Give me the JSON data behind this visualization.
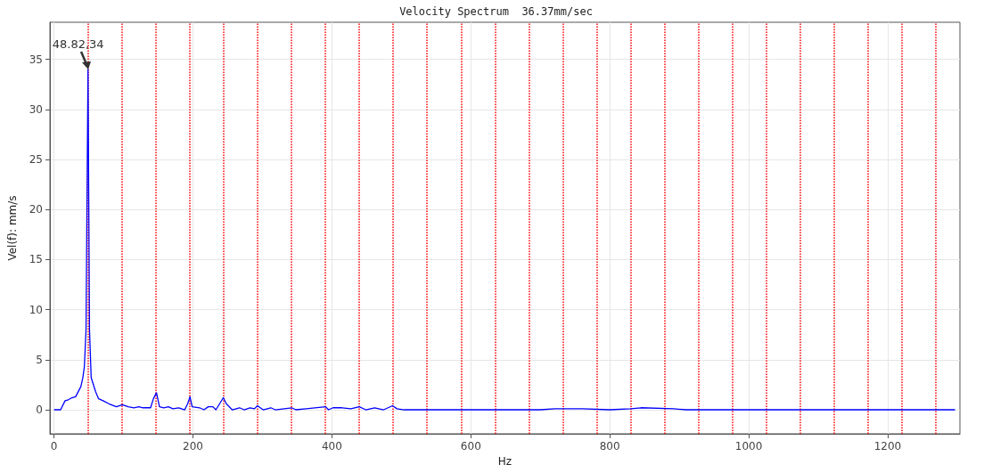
{
  "chart_data": {
    "type": "line",
    "title": "Velocity Spectrum  36.37mm/sec",
    "xlabel": "Hz",
    "ylabel": "Vel(f): mm/s",
    "annotations": [
      {
        "text": "48.82,34",
        "x": 48.82,
        "y": 34
      }
    ],
    "x": [
      0,
      9.4,
      15.8,
      20.5,
      25.6,
      31,
      34,
      38.5,
      41.4,
      43.6,
      46,
      48.82,
      51,
      53.4,
      59.8,
      64.1,
      70.5,
      79,
      89.7,
      98.3,
      106.8,
      115,
      121.8,
      128,
      138.9,
      143,
      147.4,
      151.7,
      158,
      164.5,
      171,
      179.5,
      188,
      192.3,
      195.7,
      198.7,
      209.4,
      215.8,
      222,
      228.6,
      233,
      243.6,
      247.9,
      256.4,
      267,
      273.5,
      282,
      288.5,
      292.7,
      301,
      312,
      318.4,
      342,
      348,
      363,
      391,
      395,
      401.7,
      414.5,
      427.4,
      439.3,
      448.7,
      461.5,
      474.4,
      487.2,
      493.6,
      504,
      600,
      700,
      721,
      760,
      800,
      830,
      845,
      892,
      910,
      1000,
      1100,
      1200,
      1297
    ],
    "values": [
      0,
      0,
      0.9,
      1.0,
      1.2,
      1.3,
      1.7,
      2.3,
      3.2,
      4.3,
      8,
      34,
      8,
      3.2,
      1.8,
      1.1,
      0.9,
      0.6,
      0.3,
      0.5,
      0.3,
      0.2,
      0.3,
      0.2,
      0.2,
      1.1,
      1.7,
      0.3,
      0.2,
      0.3,
      0.1,
      0.2,
      0,
      0.6,
      1.3,
      0.3,
      0.2,
      0,
      0.3,
      0.3,
      0,
      1.2,
      0.6,
      0,
      0.2,
      0,
      0.2,
      0.1,
      0.4,
      0,
      0.2,
      0,
      0.2,
      0,
      0.1,
      0.3,
      0,
      0.2,
      0.2,
      0.1,
      0.3,
      0,
      0.2,
      0,
      0.4,
      0.1,
      0,
      0,
      0,
      0.1,
      0.1,
      0,
      0.1,
      0.2,
      0.1,
      0,
      0,
      0,
      0,
      0
    ],
    "color": "#0000ff",
    "xlim": [
      -6,
      1304
    ],
    "xticks": [
      0,
      200,
      400,
      600,
      800,
      1000,
      1200
    ],
    "ylim": [
      -2.4,
      38.7
    ],
    "yticks": [
      0,
      5,
      10,
      15,
      20,
      25,
      30,
      35
    ],
    "grid": true,
    "marker": "none",
    "line_style": "solid",
    "ref_lines": [
      {
        "axis": "x",
        "value": 48.82,
        "color": "#ff0000",
        "line_style": "dotted"
      },
      {
        "axis": "x",
        "value": 97.64,
        "color": "#ff0000",
        "line_style": "dotted"
      },
      {
        "axis": "x",
        "value": 146.46,
        "color": "#ff0000",
        "line_style": "dotted"
      },
      {
        "axis": "x",
        "value": 195.28,
        "color": "#ff0000",
        "line_style": "dotted"
      },
      {
        "axis": "x",
        "value": 244.1,
        "color": "#ff0000",
        "line_style": "dotted"
      },
      {
        "axis": "x",
        "value": 292.92,
        "color": "#ff0000",
        "line_style": "dotted"
      },
      {
        "axis": "x",
        "value": 341.74,
        "color": "#ff0000",
        "line_style": "dotted"
      },
      {
        "axis": "x",
        "value": 390.56,
        "color": "#ff0000",
        "line_style": "dotted"
      },
      {
        "axis": "x",
        "value": 439.38,
        "color": "#ff0000",
        "line_style": "dotted"
      },
      {
        "axis": "x",
        "value": 488.2,
        "color": "#ff0000",
        "line_style": "dotted"
      },
      {
        "axis": "x",
        "value": 537.02,
        "color": "#ff0000",
        "line_style": "dotted"
      },
      {
        "axis": "x",
        "value": 585.84,
        "color": "#ff0000",
        "line_style": "dotted"
      },
      {
        "axis": "x",
        "value": 634.66,
        "color": "#ff0000",
        "line_style": "dotted"
      },
      {
        "axis": "x",
        "value": 683.48,
        "color": "#ff0000",
        "line_style": "dotted"
      },
      {
        "axis": "x",
        "value": 732.3,
        "color": "#ff0000",
        "line_style": "dotted"
      },
      {
        "axis": "x",
        "value": 781.12,
        "color": "#ff0000",
        "line_style": "dotted"
      },
      {
        "axis": "x",
        "value": 829.94,
        "color": "#ff0000",
        "line_style": "dotted"
      },
      {
        "axis": "x",
        "value": 878.76,
        "color": "#ff0000",
        "line_style": "dotted"
      },
      {
        "axis": "x",
        "value": 927.58,
        "color": "#ff0000",
        "line_style": "dotted"
      },
      {
        "axis": "x",
        "value": 976.4,
        "color": "#ff0000",
        "line_style": "dotted"
      },
      {
        "axis": "x",
        "value": 1025.22,
        "color": "#ff0000",
        "line_style": "dotted"
      },
      {
        "axis": "x",
        "value": 1074.04,
        "color": "#ff0000",
        "line_style": "dotted"
      },
      {
        "axis": "x",
        "value": 1122.86,
        "color": "#ff0000",
        "line_style": "dotted"
      },
      {
        "axis": "x",
        "value": 1171.68,
        "color": "#ff0000",
        "line_style": "dotted"
      },
      {
        "axis": "x",
        "value": 1220.5,
        "color": "#ff0000",
        "line_style": "dotted"
      },
      {
        "axis": "x",
        "value": 1269.32,
        "color": "#ff0000",
        "line_style": "dotted"
      }
    ]
  }
}
